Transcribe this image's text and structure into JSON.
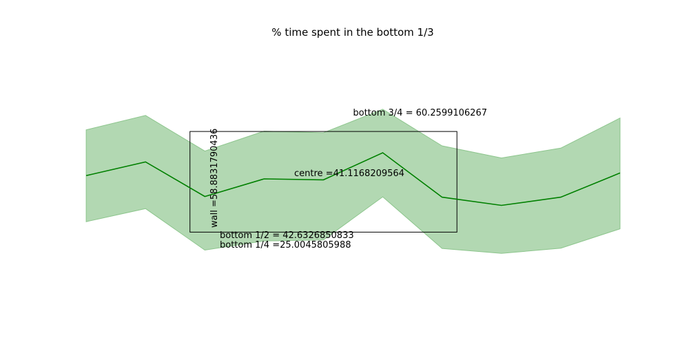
{
  "chart_data": {
    "type": "line",
    "title": "% time spent in the bottom 1/3",
    "xlabel": "",
    "ylabel": "",
    "axes_visible": false,
    "grid": false,
    "x": [
      0,
      1,
      2,
      3,
      4,
      5,
      6,
      7,
      8,
      9
    ],
    "xlim": [
      -0.5,
      9.5
    ],
    "ylim": [
      5,
      85
    ],
    "series": [
      {
        "style": "line-with-band",
        "values": [
          43.9,
          48.1,
          37.5,
          42.9,
          42.6,
          50.9,
          37.3,
          34.8,
          37.3,
          44.7
        ],
        "lower": [
          29.8,
          33.8,
          21.1,
          23.9,
          24.2,
          37.4,
          21.6,
          20.1,
          21.7,
          27.6
        ],
        "upper": [
          57.9,
          62.3,
          51.4,
          57.5,
          57.0,
          64.2,
          53.0,
          49.3,
          52.3,
          61.5
        ],
        "line_color": "#008000",
        "band_color": "#b2d8b2"
      }
    ],
    "annotation_box": {
      "x": [
        1.75,
        6.25
      ],
      "y": [
        26.6,
        57.4
      ]
    },
    "annotations": {
      "bottom_three_quarters": "bottom 3/4 = 60.2599106267",
      "centre": "centre =41.1168209564",
      "wall": "wall =58.8831790436",
      "bottom_half": "bottom 1/2 = 42.6326850833",
      "bottom_quarter": "bottom 1/4 =25.0045805988"
    }
  }
}
